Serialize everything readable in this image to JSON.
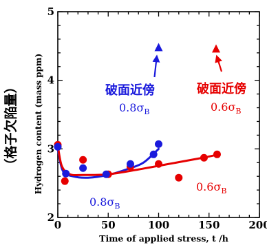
{
  "chart_data": {
    "type": "scatter",
    "title": "",
    "xlabel": "Time of applied stress,  t /h",
    "ylabel": "Hydrogen content (mass ppm)",
    "ylabel_jp": "（格子欠陥量）",
    "xlim": [
      0,
      200
    ],
    "ylim": [
      2,
      5
    ],
    "x_ticks": [
      "0",
      "50",
      "100",
      "150",
      "200"
    ],
    "y_ticks": [
      "2",
      "3",
      "4",
      "5"
    ],
    "grid": false,
    "colors": {
      "blue": "#1a1adc",
      "red": "#e60000",
      "axis": "#000000"
    },
    "series": [
      {
        "color": "blue",
        "points": [
          {
            "x": 0,
            "y": 3.03
          },
          {
            "x": 8,
            "y": 2.64
          },
          {
            "x": 25,
            "y": 2.72
          },
          {
            "x": 48,
            "y": 2.63
          },
          {
            "x": 72,
            "y": 2.78
          },
          {
            "x": 95,
            "y": 2.92
          },
          {
            "x": 100,
            "y": 3.07
          }
        ],
        "curve": [
          {
            "x": 0,
            "y": 3.0
          },
          {
            "x": 5,
            "y": 2.68
          },
          {
            "x": 15,
            "y": 2.6
          },
          {
            "x": 30,
            "y": 2.58
          },
          {
            "x": 50,
            "y": 2.62
          },
          {
            "x": 70,
            "y": 2.71
          },
          {
            "x": 85,
            "y": 2.8
          },
          {
            "x": 100,
            "y": 3.0
          }
        ],
        "fracture_marker": {
          "x": 100,
          "y": 4.48
        },
        "annotation_jp": "破面近傍",
        "annotation_val": "0.8σ",
        "annotation_sub": "B",
        "curve_label": "0.8σ",
        "curve_label_sub": "B"
      },
      {
        "color": "red",
        "points": [
          {
            "x": 0,
            "y": 3.06
          },
          {
            "x": 7,
            "y": 2.53
          },
          {
            "x": 25,
            "y": 2.84
          },
          {
            "x": 50,
            "y": 2.63
          },
          {
            "x": 72,
            "y": 2.74
          },
          {
            "x": 100,
            "y": 2.78
          },
          {
            "x": 120,
            "y": 2.58
          },
          {
            "x": 145,
            "y": 2.87
          },
          {
            "x": 158,
            "y": 2.92
          }
        ],
        "curve": [
          {
            "x": 0,
            "y": 3.05
          },
          {
            "x": 4,
            "y": 2.75
          },
          {
            "x": 12,
            "y": 2.63
          },
          {
            "x": 25,
            "y": 2.62
          },
          {
            "x": 50,
            "y": 2.63
          },
          {
            "x": 80,
            "y": 2.7
          },
          {
            "x": 110,
            "y": 2.78
          },
          {
            "x": 140,
            "y": 2.86
          },
          {
            "x": 160,
            "y": 2.92
          }
        ],
        "fracture_marker": {
          "x": 157,
          "y": 4.46
        },
        "annotation_jp": "破面近傍",
        "annotation_val": "0.6σ",
        "annotation_sub": "B",
        "curve_label": "0.6σ",
        "curve_label_sub": "B"
      }
    ]
  }
}
